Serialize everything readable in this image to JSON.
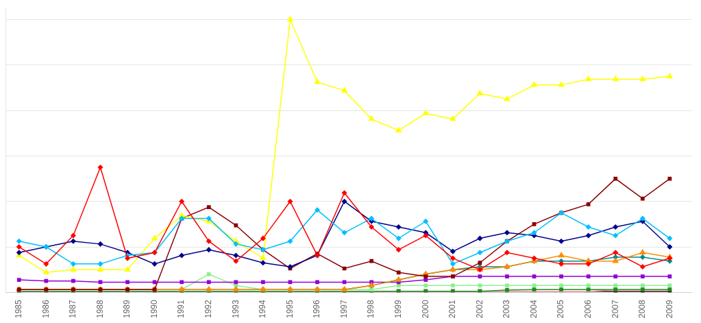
{
  "chart_data": {
    "type": "line",
    "x": [
      1985,
      1986,
      1987,
      1988,
      1989,
      1990,
      1991,
      1992,
      1993,
      1994,
      1995,
      1996,
      1997,
      1998,
      1999,
      2000,
      2001,
      2002,
      2003,
      2004,
      2005,
      2006,
      2007,
      2008,
      2009
    ],
    "series": [
      {
        "color": "#FF0000",
        "marker": "diamond",
        "values": [
          80,
          50,
          100,
          220,
          60,
          70,
          160,
          90,
          55,
          95,
          160,
          65,
          175,
          115,
          75,
          100,
          60,
          40,
          70,
          60,
          50,
          50,
          70,
          45,
          60
        ]
      },
      {
        "color": "#00BFFF",
        "marker": "diamond",
        "values": [
          90,
          80,
          50,
          50,
          65,
          70,
          130,
          130,
          85,
          75,
          90,
          145,
          105,
          130,
          95,
          125,
          50,
          70,
          90,
          105,
          140,
          115,
          100,
          130,
          95
        ]
      },
      {
        "color": "#00008B",
        "marker": "diamond",
        "values": [
          70,
          80,
          90,
          85,
          70,
          50,
          65,
          75,
          65,
          52,
          45,
          65,
          160,
          125,
          115,
          105,
          72,
          95,
          105,
          100,
          90,
          100,
          115,
          125,
          80
        ]
      },
      {
        "color": "#FFFF00",
        "marker": "triangle",
        "values": [
          65,
          35,
          40,
          40,
          40,
          95,
          135,
          125,
          90,
          60,
          480,
          370,
          355,
          305,
          285,
          315,
          305,
          350,
          340,
          365,
          365,
          375,
          375,
          375,
          380
        ]
      },
      {
        "color": "#8B0000",
        "marker": "square",
        "values": [
          5,
          5,
          5,
          5,
          5,
          5,
          130,
          150,
          118,
          75,
          42,
          68,
          42,
          55,
          35,
          28,
          28,
          52,
          90,
          120,
          140,
          155,
          200,
          165,
          200
        ]
      },
      {
        "color": "#FF8C00",
        "marker": "triangle",
        "values": [
          5,
          5,
          5,
          5,
          5,
          5,
          5,
          5,
          5,
          5,
          5,
          5,
          5,
          12,
          22,
          32,
          40,
          40,
          45,
          55,
          65,
          55,
          55,
          70,
          62
        ]
      },
      {
        "color": "#008B8B",
        "marker": "diamond",
        "values": [
          5,
          5,
          5,
          5,
          5,
          5,
          5,
          5,
          5,
          5,
          5,
          5,
          5,
          12,
          22,
          32,
          40,
          45,
          45,
          55,
          55,
          55,
          62,
          62,
          55
        ]
      },
      {
        "color": "#9400D3",
        "marker": "square",
        "values": [
          22,
          20,
          20,
          18,
          18,
          18,
          18,
          18,
          18,
          18,
          18,
          18,
          18,
          18,
          18,
          22,
          28,
          28,
          28,
          28,
          28,
          28,
          28,
          28,
          28
        ]
      },
      {
        "color": "#90EE90",
        "marker": "square",
        "values": [
          5,
          5,
          5,
          5,
          5,
          5,
          5,
          32,
          12,
          5,
          5,
          5,
          5,
          5,
          12,
          12,
          12,
          12,
          12,
          12,
          12,
          12,
          12,
          12,
          12
        ]
      },
      {
        "color": "#228B22",
        "marker": "square",
        "values": [
          2,
          2,
          2,
          2,
          2,
          2,
          2,
          2,
          2,
          2,
          2,
          2,
          2,
          2,
          2,
          2,
          2,
          2,
          4,
          5,
          5,
          5,
          5,
          5,
          5
        ]
      },
      {
        "color": "#FFB6C1",
        "marker": "square",
        "values": [
          2,
          2,
          2,
          2,
          2,
          2,
          2,
          2,
          2,
          2,
          2,
          2,
          2,
          2,
          2,
          2,
          2,
          2,
          2,
          2,
          2,
          2,
          5,
          5,
          5
        ]
      },
      {
        "color": "#3B0000",
        "marker": "square",
        "values": [
          2,
          2,
          2,
          2,
          2,
          2,
          2,
          2,
          2,
          2,
          2,
          2,
          2,
          2,
          2,
          2,
          2,
          2,
          2,
          2,
          2,
          2,
          2,
          2,
          2
        ]
      }
    ],
    "xlim": [
      1984.5,
      2009.8
    ],
    "xticks": [
      1985,
      1986,
      1987,
      1988,
      1989,
      1990,
      1991,
      1992,
      1993,
      1994,
      1995,
      1996,
      1997,
      1998,
      1999,
      2000,
      2001,
      2002,
      2003,
      2004,
      2005,
      2006,
      2007,
      2008,
      2009
    ],
    "ylim": [
      0,
      500
    ],
    "yticks": [
      0,
      80,
      160,
      240,
      320,
      400,
      480
    ],
    "grid": true,
    "tick_labels": "x"
  }
}
